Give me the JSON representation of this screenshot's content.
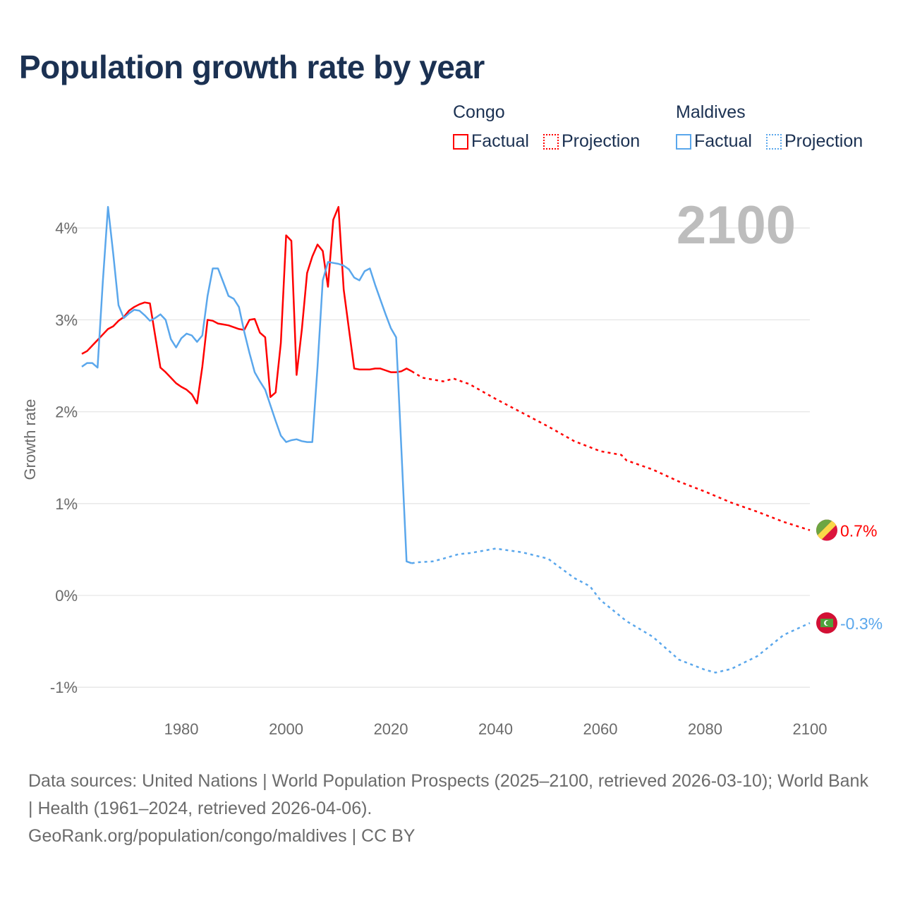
{
  "title": "Population growth rate by year",
  "current_year": "2100",
  "legend": [
    {
      "country": "Congo",
      "factual": "Factual",
      "projection": "Projection",
      "color": "#ff0000"
    },
    {
      "country": "Maldives",
      "factual": "Factual",
      "projection": "Projection",
      "color": "#5aa7ec"
    }
  ],
  "end_labels": {
    "congo": "0.7%",
    "maldives": "-0.3%"
  },
  "footer": {
    "sources": "Data sources: United Nations | World Population Prospects (2025–2100, retrieved 2026-03-10); World Bank | Health (1961–2024, retrieved 2026-04-06).",
    "attribution": "GeoRank.org/population/congo/maldives | CC BY"
  },
  "chart_data": {
    "type": "line",
    "title": "Population growth rate by year",
    "xlabel": "",
    "ylabel": "Growth rate",
    "xlim": [
      1961,
      2100
    ],
    "ylim": [
      -1.2,
      4.4
    ],
    "x_ticks": [
      1980,
      2000,
      2020,
      2040,
      2060,
      2080,
      2100
    ],
    "y_ticks": [
      {
        "v": 4,
        "label": "4%"
      },
      {
        "v": 3,
        "label": "3%"
      },
      {
        "v": 2,
        "label": "2%"
      },
      {
        "v": 1,
        "label": "1%"
      },
      {
        "v": 0,
        "label": "0%"
      },
      {
        "v": -1,
        "label": "-1%"
      }
    ],
    "grid": true,
    "series": [
      {
        "name": "Congo Factual",
        "color": "#ff0000",
        "dashed": false,
        "start": 1961,
        "values": [
          2.63,
          2.66,
          2.72,
          2.78,
          2.84,
          2.9,
          2.93,
          2.99,
          3.03,
          3.1,
          3.14,
          3.17,
          3.19,
          3.18,
          2.83,
          2.48,
          2.43,
          2.37,
          2.31,
          2.27,
          2.24,
          2.19,
          2.09,
          2.49,
          3.0,
          2.99,
          2.96,
          2.95,
          2.94,
          2.92,
          2.9,
          2.89,
          3.0,
          3.01,
          2.86,
          2.81,
          2.16,
          2.21,
          2.75,
          3.92,
          3.86,
          2.4,
          2.89,
          3.51,
          3.69,
          3.82,
          3.75,
          3.36,
          4.09,
          4.23,
          3.33,
          2.9,
          2.47,
          2.46,
          2.46,
          2.46,
          2.47,
          2.47,
          2.45,
          2.43,
          2.43,
          2.44,
          2.47,
          2.44
        ]
      },
      {
        "name": "Congo Projection",
        "color": "#ff0000",
        "dashed": true,
        "points": [
          [
            2024,
            2.44
          ],
          [
            2026,
            2.37
          ],
          [
            2030,
            2.33
          ],
          [
            2032,
            2.36
          ],
          [
            2035,
            2.3
          ],
          [
            2040,
            2.14
          ],
          [
            2045,
            1.99
          ],
          [
            2050,
            1.84
          ],
          [
            2055,
            1.68
          ],
          [
            2060,
            1.57
          ],
          [
            2064,
            1.53
          ],
          [
            2065,
            1.47
          ],
          [
            2070,
            1.37
          ],
          [
            2075,
            1.24
          ],
          [
            2080,
            1.13
          ],
          [
            2085,
            1.01
          ],
          [
            2090,
            0.91
          ],
          [
            2095,
            0.8
          ],
          [
            2100,
            0.71
          ]
        ]
      },
      {
        "name": "Maldives Factual",
        "color": "#5aa7ec",
        "dashed": false,
        "start": 1961,
        "values": [
          2.49,
          2.53,
          2.53,
          2.48,
          3.41,
          4.23,
          3.72,
          3.16,
          3.02,
          3.07,
          3.11,
          3.1,
          3.05,
          2.99,
          3.02,
          3.06,
          3.0,
          2.79,
          2.7,
          2.8,
          2.85,
          2.83,
          2.76,
          2.83,
          3.26,
          3.56,
          3.56,
          3.41,
          3.26,
          3.23,
          3.14,
          2.87,
          2.64,
          2.43,
          2.33,
          2.24,
          2.07,
          1.9,
          1.74,
          1.67,
          1.69,
          1.7,
          1.68,
          1.67,
          1.67,
          2.49,
          3.43,
          3.63,
          3.62,
          3.61,
          3.59,
          3.55,
          3.46,
          3.43,
          3.53,
          3.56,
          3.38,
          3.22,
          3.06,
          2.91,
          2.81,
          1.6,
          0.37,
          0.35
        ]
      },
      {
        "name": "Maldives Projection",
        "color": "#5aa7ec",
        "dashed": true,
        "points": [
          [
            2024,
            0.35
          ],
          [
            2025,
            0.36
          ],
          [
            2028,
            0.37
          ],
          [
            2030,
            0.4
          ],
          [
            2033,
            0.45
          ],
          [
            2035,
            0.46
          ],
          [
            2040,
            0.51
          ],
          [
            2045,
            0.47
          ],
          [
            2050,
            0.4
          ],
          [
            2055,
            0.19
          ],
          [
            2058,
            0.1
          ],
          [
            2060,
            -0.05
          ],
          [
            2065,
            -0.28
          ],
          [
            2070,
            -0.45
          ],
          [
            2075,
            -0.7
          ],
          [
            2080,
            -0.81
          ],
          [
            2082,
            -0.84
          ],
          [
            2085,
            -0.8
          ],
          [
            2090,
            -0.66
          ],
          [
            2095,
            -0.43
          ],
          [
            2100,
            -0.3
          ]
        ]
      }
    ]
  }
}
